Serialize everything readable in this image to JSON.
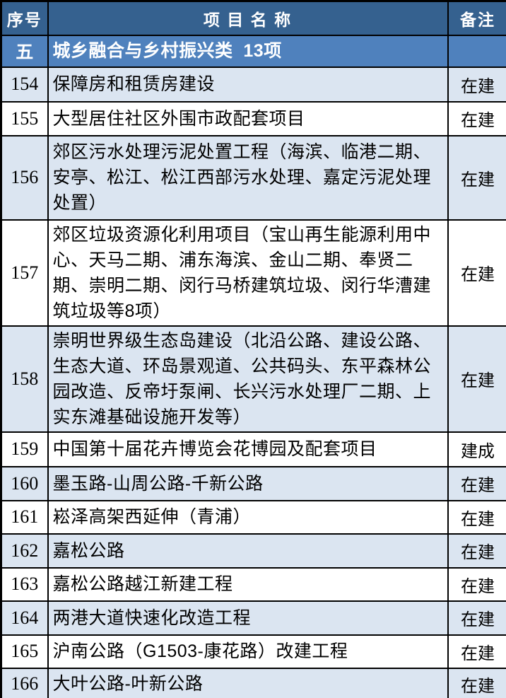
{
  "colors": {
    "header-bg": "#35618F",
    "section-bg": "#4F81BD",
    "row-alt-bg": "#DBE5F1",
    "row-bg": "#FFFFFF",
    "border-color": "#000000",
    "header-text": "#FFFFFF",
    "body-text": "#000000"
  },
  "table": {
    "columns": [
      {
        "key": "no",
        "label": "序号"
      },
      {
        "key": "name",
        "label": "项 目 名 称"
      },
      {
        "key": "remark",
        "label": "备注"
      }
    ],
    "section": {
      "no": "五",
      "title": "城乡融合与乡村振兴类  13项",
      "remark": ""
    },
    "rows": [
      {
        "no": "154",
        "name": "保障房和租赁房建设",
        "remark": "在建"
      },
      {
        "no": "155",
        "name": "大型居住社区外围市政配套项目",
        "remark": "在建"
      },
      {
        "no": "156",
        "name": "郊区污水处理污泥处置工程（海滨、临港二期、安亭、松江、松江西部污水处理、嘉定污泥处理处置）",
        "remark": "在建"
      },
      {
        "no": "157",
        "name": "郊区垃圾资源化利用项目（宝山再生能源利用中心、天马二期、浦东海滨、金山二期、奉贤二期、崇明二期、闵行马桥建筑垃圾、闵行华漕建筑垃圾等8项）",
        "remark": "在建"
      },
      {
        "no": "158",
        "name": "崇明世界级生态岛建设（北沿公路、建设公路、生态大道、环岛景观道、公共码头、东平森林公园改造、反帝圩泵闸、长兴污水处理厂二期、上实东滩基础设施开发等）",
        "remark": "在建"
      },
      {
        "no": "159",
        "name": "中国第十届花卉博览会花博园及配套项目",
        "remark": "建成"
      },
      {
        "no": "160",
        "name": "墨玉路-山周公路-千新公路",
        "remark": "在建"
      },
      {
        "no": "161",
        "name": "崧泽高架西延伸（青浦）",
        "remark": "在建"
      },
      {
        "no": "162",
        "name": "嘉松公路",
        "remark": "在建"
      },
      {
        "no": "163",
        "name": "嘉松公路越江新建工程",
        "remark": "在建"
      },
      {
        "no": "164",
        "name": "两港大道快速化改造工程",
        "remark": "在建"
      },
      {
        "no": "165",
        "name": "沪南公路（G1503-康花路）改建工程",
        "remark": "在建"
      },
      {
        "no": "166",
        "name": "大叶公路-叶新公路",
        "remark": "在建"
      }
    ]
  }
}
